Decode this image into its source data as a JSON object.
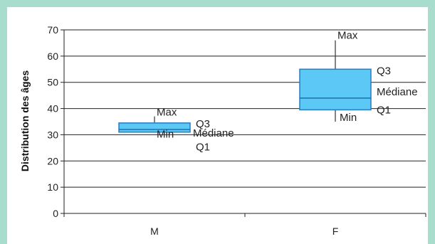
{
  "chart_data": {
    "type": "boxplot",
    "title": "",
    "xlabel": "",
    "ylabel": "Distribution des âges",
    "ylim": [
      0,
      70
    ],
    "yticks": [
      0,
      10,
      20,
      30,
      40,
      50,
      60,
      70
    ],
    "grid": true,
    "categories": [
      "M",
      "F"
    ],
    "boxes": [
      {
        "category": "M",
        "min": 31,
        "q1": 31,
        "median": 32,
        "q3": 34.5,
        "max": 37
      },
      {
        "category": "F",
        "min": 35,
        "q1": 39.5,
        "median": 44,
        "q3": 55,
        "max": 66
      }
    ],
    "annotations": {
      "max": "Max",
      "q3": "Q3",
      "median": "Médiane",
      "q1": "Q1",
      "min": "Min"
    },
    "box_color": "#5bc8f5",
    "box_border": "#2a7bbf",
    "median_color": "#1e6fb0"
  }
}
